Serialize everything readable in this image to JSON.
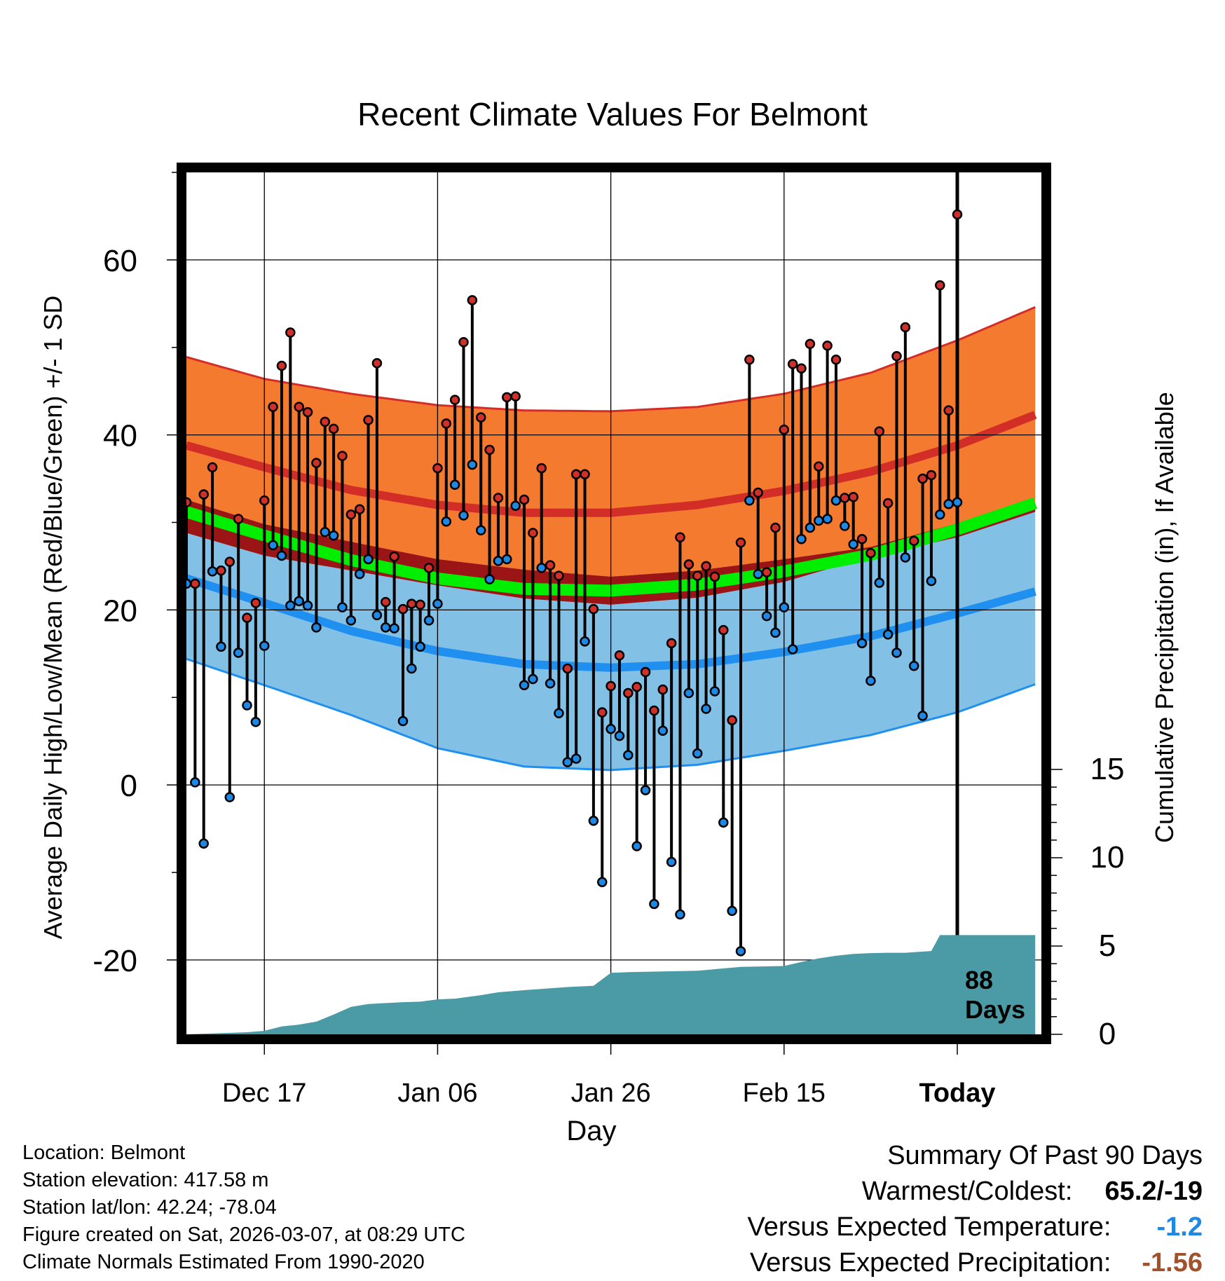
{
  "title": "Recent Climate Values For Belmont",
  "ylabel": "Average Daily High/Low/Mean (Red/Blue/Green) +/- 1 SD",
  "y2label": "Cumulative Precipitation (in), If Available",
  "xlabel": "Day",
  "days_label": [
    "88",
    "Days"
  ],
  "meta": {
    "location": "Location: Belmont",
    "elevation": "Station elevation: 417.58 m",
    "latlon": "Station lat/lon: 42.24; -78.04",
    "created": "Figure created on Sat, 2026-03-07, at 08:29 UTC",
    "normals": "Climate Normals Estimated From 1990-2020"
  },
  "summary": {
    "heading": "Summary Of Past 90 Days",
    "warmest_label": "Warmest/Coldest:",
    "warmest_value": "65.2/-19",
    "temp_label": "Versus Expected Temperature:",
    "temp_value": "-1.2",
    "precip_label": "Versus Expected Precipitation:",
    "precip_value": "-1.56"
  },
  "colors": {
    "high_band": "#f47a30",
    "high_mean": "#d32d28",
    "low_band": "#82c0e6",
    "low_mean": "#1f8ff0",
    "mean_line": "#00ee00",
    "overlap": "#9b1517",
    "precip": "#4a9ba5",
    "high_dot": "#d0302a",
    "low_dot": "#1e88e5",
    "temp_value": "#1e88e5",
    "precip_value": "#a0522d"
  },
  "chart_data": {
    "type": "line",
    "x_range_days": [
      -89,
      10
    ],
    "y_range": [
      -28.5,
      70
    ],
    "y_ticks": [
      -20,
      0,
      20,
      40,
      60
    ],
    "y2_range": [
      0,
      15
    ],
    "y2_ticks": [
      0,
      5,
      10,
      15
    ],
    "x_ticks": [
      {
        "day": -80,
        "label": "Dec 17"
      },
      {
        "day": -60,
        "label": "Jan 06"
      },
      {
        "day": -40,
        "label": "Jan 26"
      },
      {
        "day": -20,
        "label": "Feb 15"
      },
      {
        "day": 0,
        "label": "Today"
      }
    ],
    "normals": {
      "days": [
        -89,
        -80,
        -70,
        -60,
        -50,
        -40,
        -30,
        -20,
        -10,
        0,
        9
      ],
      "high_mean": [
        38.8,
        36.3,
        33.7,
        32.0,
        31.1,
        31.1,
        32.0,
        33.6,
        35.8,
        38.8,
        42.3
      ],
      "high_upper": [
        48.9,
        46.4,
        44.7,
        43.4,
        42.8,
        42.7,
        43.2,
        44.7,
        47.1,
        50.8,
        54.6
      ],
      "high_lower": [
        32.6,
        29.8,
        27.8,
        25.8,
        24.6,
        23.8,
        24.5,
        25.8,
        27.2,
        29.9,
        32.2
      ],
      "low_mean": [
        23.6,
        20.8,
        17.6,
        15.3,
        13.8,
        13.4,
        13.8,
        15.2,
        17.0,
        19.6,
        22.1
      ],
      "low_upper": [
        28.8,
        26.2,
        24.5,
        22.8,
        21.3,
        20.6,
        21.4,
        23.2,
        26.1,
        28.3,
        31.2
      ],
      "low_lower": [
        14.4,
        11.4,
        8.0,
        4.2,
        2.1,
        1.7,
        2.3,
        3.9,
        5.7,
        8.3,
        11.5
      ],
      "mean": [
        31.2,
        28.5,
        25.7,
        23.6,
        22.4,
        22.2,
        22.9,
        24.4,
        26.3,
        29.2,
        32.2
      ]
    },
    "series": [
      {
        "name": "High",
        "values": [
          32.3,
          23.0,
          33.2,
          36.3,
          24.5,
          25.5,
          30.4,
          19.1,
          20.8,
          32.5,
          43.2,
          47.9,
          51.7,
          43.2,
          42.6,
          36.8,
          41.5,
          40.7,
          37.6,
          30.9,
          31.5,
          41.7,
          48.2,
          20.9,
          26.1,
          20.1,
          20.7,
          20.6,
          24.8,
          36.2,
          41.3,
          44.0,
          50.6,
          55.4,
          42.0,
          38.3,
          32.8,
          44.3,
          44.4,
          32.6,
          28.8,
          36.2,
          25.1,
          23.9,
          13.3,
          35.5,
          35.5,
          20.1,
          8.3,
          11.3,
          14.8,
          10.5,
          11.2,
          12.9,
          8.5,
          10.9,
          16.2,
          28.3,
          25.2,
          23.9,
          25.0,
          23.8,
          17.7,
          7.4,
          27.7,
          48.6,
          33.4,
          24.3,
          29.4,
          40.6,
          48.1,
          47.6,
          50.4,
          36.4,
          50.2,
          48.6,
          32.8,
          32.9,
          28.1,
          26.5,
          40.4,
          32.2,
          49.0,
          52.3,
          27.9,
          35.0,
          35.4,
          57.1,
          42.8,
          65.2
        ]
      },
      {
        "name": "Low",
        "values": [
          23.0,
          0.3,
          -6.7,
          24.4,
          15.8,
          -1.4,
          15.1,
          9.1,
          7.2,
          15.9,
          27.4,
          26.2,
          20.5,
          21.0,
          20.5,
          18.0,
          28.9,
          28.5,
          20.3,
          18.8,
          24.1,
          25.8,
          19.4,
          18.0,
          17.9,
          7.3,
          13.3,
          15.8,
          18.8,
          20.7,
          30.1,
          34.3,
          30.8,
          36.6,
          29.1,
          23.5,
          25.6,
          25.8,
          31.9,
          11.4,
          12.1,
          24.8,
          11.6,
          8.2,
          2.6,
          3.0,
          16.4,
          -4.1,
          -11.1,
          6.4,
          5.6,
          3.4,
          -7.0,
          -0.6,
          -13.6,
          6.2,
          -8.8,
          -14.8,
          10.5,
          3.6,
          8.7,
          10.7,
          -4.3,
          -14.4,
          -19.0,
          32.5,
          24.1,
          19.3,
          17.4,
          20.3,
          15.5,
          28.1,
          29.4,
          30.2,
          30.4,
          32.5,
          29.6,
          27.5,
          16.2,
          11.9,
          23.1,
          17.2,
          15.1,
          26.0,
          13.6,
          7.9,
          23.3,
          30.9,
          32.1,
          32.3
        ]
      },
      {
        "name": "Cumulative Precipitation",
        "days": [
          -89,
          -82,
          -80,
          -78,
          -76,
          -74,
          -72,
          -70,
          -68,
          -66,
          -64,
          -62,
          -60,
          -58,
          -55,
          -53,
          -50,
          -45,
          -42,
          -40,
          -38,
          -35,
          -30,
          -25,
          -22,
          -20,
          -18,
          -16,
          -14,
          -12,
          -10,
          -8,
          -6,
          -3,
          -2,
          0,
          9
        ],
        "values": [
          0,
          0.12,
          0.2,
          0.45,
          0.55,
          0.72,
          1.12,
          1.55,
          1.72,
          1.77,
          1.82,
          1.85,
          1.98,
          2.02,
          2.22,
          2.38,
          2.5,
          2.68,
          2.75,
          3.48,
          3.52,
          3.55,
          3.6,
          3.82,
          3.85,
          3.87,
          4.1,
          4.3,
          4.45,
          4.55,
          4.6,
          4.62,
          4.62,
          4.72,
          5.62,
          5.62,
          5.62
        ]
      }
    ]
  }
}
